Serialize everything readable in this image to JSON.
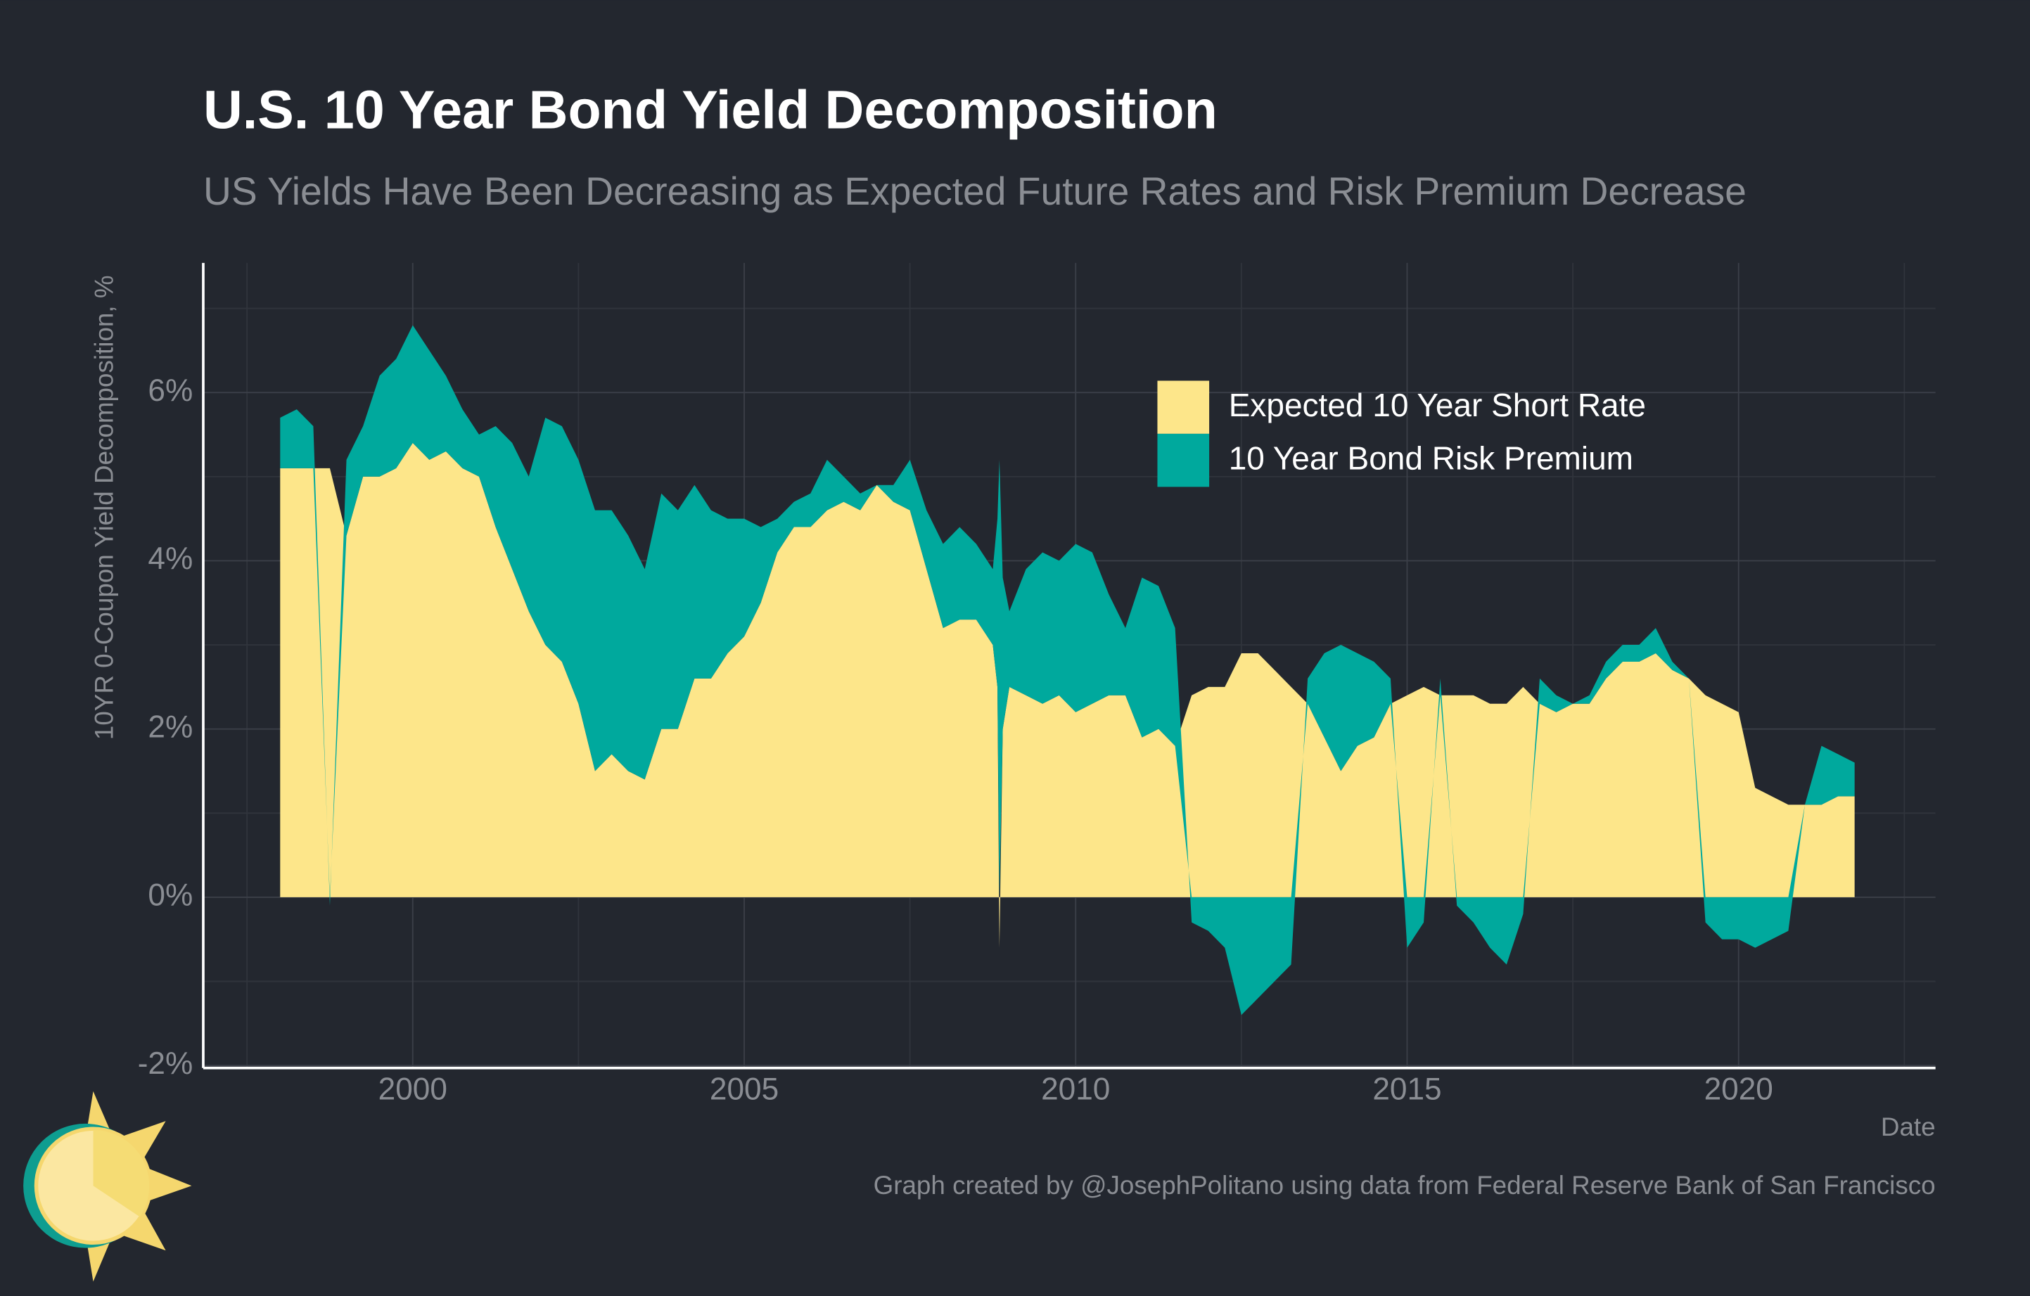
{
  "chart_data": {
    "type": "area",
    "title": "U.S. 10 Year Bond Yield Decomposition",
    "subtitle": "US Yields Have Been Decreasing as Expected Future Rates and Risk Premium Decrease",
    "y_label": "10YR 0-Coupon Yield Decomposition, %",
    "x_label": "Date",
    "caption": "Graph created by @JosephPolitano using data from Federal Reserve Bank of San Francisco",
    "stacked": true,
    "grid": true,
    "legend": "top-right",
    "xlim": [
      1996.84,
      2022.97
    ],
    "xticks": [
      2000,
      2005,
      2010,
      2015,
      2020
    ],
    "xminorticks": [
      1997.5,
      2002.5,
      2007.5,
      2012.5,
      2017.5,
      2022.5
    ],
    "ylim": [
      -2.03,
      7.54
    ],
    "yticks": [
      {
        "value": -2,
        "label": "-2%"
      },
      {
        "value": 0,
        "label": "0%"
      },
      {
        "value": 2,
        "label": "2%"
      },
      {
        "value": 4,
        "label": "4%"
      },
      {
        "value": 6,
        "label": "6%"
      }
    ],
    "yminorticks": [
      -1,
      1,
      3,
      5,
      7
    ],
    "x": [
      1998.0,
      1998.25,
      1998.5,
      1998.75,
      1999.0,
      1999.25,
      1999.5,
      1999.75,
      2000.0,
      2000.25,
      2000.5,
      2000.75,
      2001.0,
      2001.25,
      2001.5,
      2001.75,
      2002.0,
      2002.25,
      2002.5,
      2002.75,
      2003.0,
      2003.25,
      2003.5,
      2003.75,
      2004.0,
      2004.25,
      2004.5,
      2004.75,
      2005.0,
      2005.25,
      2005.5,
      2005.75,
      2006.0,
      2006.25,
      2006.5,
      2006.75,
      2007.0,
      2007.25,
      2007.5,
      2007.75,
      2008.0,
      2008.25,
      2008.5,
      2008.75,
      2008.82,
      2008.85,
      2008.9,
      2009.0,
      2009.25,
      2009.5,
      2009.75,
      2010.0,
      2010.25,
      2010.5,
      2010.75,
      2011.0,
      2011.25,
      2011.5,
      2011.75,
      2012.0,
      2012.25,
      2012.5,
      2012.75,
      2013.0,
      2013.25,
      2013.5,
      2013.75,
      2014.0,
      2014.25,
      2014.5,
      2014.75,
      2015.0,
      2015.25,
      2015.5,
      2015.75,
      2016.0,
      2016.25,
      2016.5,
      2016.75,
      2017.0,
      2017.25,
      2017.5,
      2017.75,
      2018.0,
      2018.25,
      2018.5,
      2018.75,
      2019.0,
      2019.25,
      2019.5,
      2019.75,
      2020.0,
      2020.25,
      2020.5,
      2020.75,
      2021.0,
      2021.25,
      2021.5,
      2021.75
    ],
    "series": [
      {
        "name": "Expected 10 Year Short Rate",
        "color": "#fde68a",
        "values": [
          5.1,
          5.1,
          5.1,
          5.1,
          4.3,
          5.0,
          5.0,
          5.1,
          5.4,
          5.2,
          5.3,
          5.1,
          5.0,
          4.4,
          3.9,
          3.4,
          3.0,
          2.8,
          2.3,
          1.5,
          1.7,
          1.5,
          1.4,
          2.0,
          2.0,
          2.6,
          2.6,
          2.9,
          3.1,
          3.5,
          4.1,
          4.4,
          4.4,
          4.6,
          4.7,
          4.6,
          4.9,
          4.7,
          4.6,
          3.9,
          3.2,
          3.3,
          3.3,
          3.0,
          2.5,
          -0.6,
          2.0,
          2.5,
          2.4,
          2.3,
          2.4,
          2.2,
          2.3,
          2.4,
          2.4,
          1.9,
          2.0,
          1.8,
          2.4,
          2.5,
          2.5,
          2.9,
          2.9,
          2.7,
          2.5,
          2.3,
          1.9,
          1.5,
          1.8,
          1.9,
          2.3,
          2.4,
          2.5,
          2.4,
          2.4,
          2.4,
          2.3,
          2.3,
          2.5,
          2.3,
          2.2,
          2.3,
          2.3,
          2.6,
          2.8,
          2.8,
          2.9,
          2.7,
          2.6,
          2.4,
          2.3,
          2.2,
          1.3,
          1.2,
          1.1,
          1.1,
          1.1,
          1.2,
          1.2
        ]
      },
      {
        "name": "10 Year Bond Risk Premium",
        "color": "#00a99d",
        "values": [
          0.6,
          0.7,
          0.5,
          -0.1,
          0.9,
          0.6,
          1.2,
          1.3,
          1.4,
          1.3,
          0.9,
          0.7,
          0.5,
          1.2,
          1.5,
          1.6,
          2.7,
          2.8,
          2.9,
          3.1,
          2.9,
          2.8,
          2.5,
          2.8,
          2.6,
          2.3,
          2.0,
          1.6,
          1.4,
          0.9,
          0.4,
          0.3,
          0.4,
          0.6,
          0.3,
          0.2,
          0.0,
          0.2,
          0.6,
          0.7,
          1.0,
          1.1,
          0.9,
          0.9,
          2.0,
          5.2,
          1.8,
          0.9,
          1.5,
          1.8,
          1.6,
          2.0,
          1.8,
          1.2,
          0.8,
          1.9,
          1.7,
          1.4,
          -0.3,
          -0.4,
          -0.6,
          -1.4,
          -1.2,
          -1.0,
          -0.8,
          0.3,
          1.0,
          1.5,
          1.1,
          0.9,
          0.3,
          -0.6,
          -0.3,
          0.2,
          -0.1,
          -0.3,
          -0.6,
          -0.8,
          -0.2,
          0.3,
          0.2,
          0.0,
          0.1,
          0.2,
          0.2,
          0.2,
          0.3,
          0.1,
          0.0,
          -0.3,
          -0.5,
          -0.5,
          -0.6,
          -0.5,
          -0.4,
          0.0,
          0.7,
          0.5,
          0.4
        ]
      }
    ]
  }
}
